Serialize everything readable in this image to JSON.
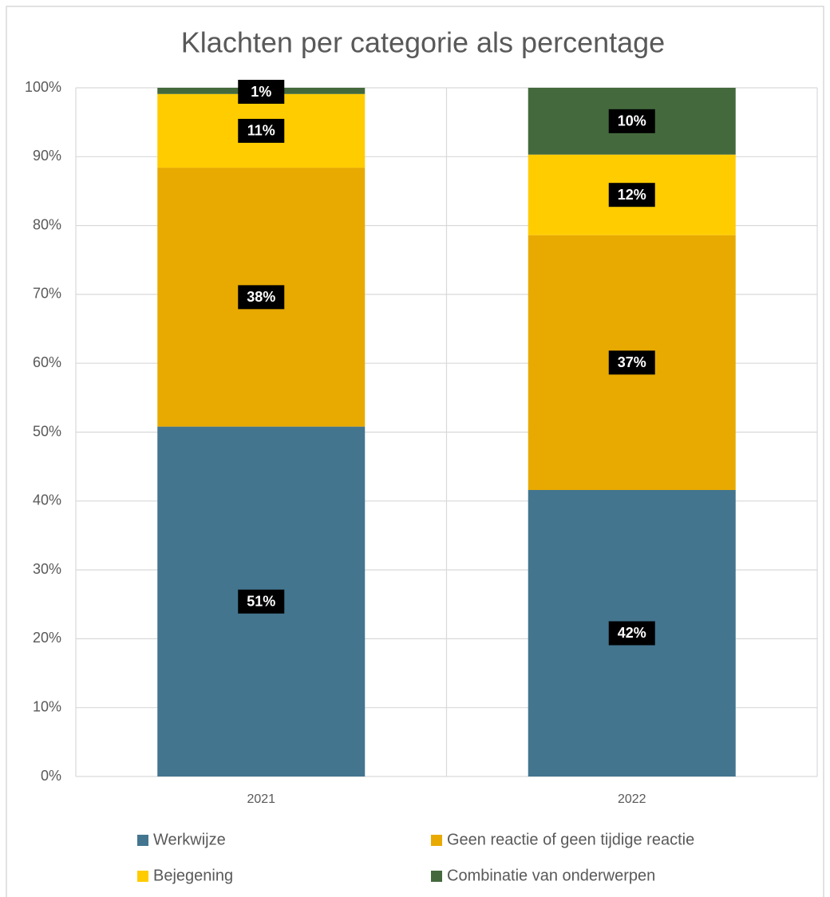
{
  "chart_data": {
    "type": "stacked_bar",
    "title": "Klachten per categorie als percentage",
    "categories": [
      "2021",
      "2022"
    ],
    "series": [
      {
        "name": "Werkwijze",
        "color": "#43758f",
        "values": [
          50.8,
          41.6
        ],
        "value_labels": [
          "51%",
          "42%"
        ]
      },
      {
        "name": "Geen reactie of geen tijdige reactie",
        "color": "#e8aa00",
        "values": [
          37.6,
          37.0
        ],
        "value_labels": [
          "38%",
          "37%"
        ]
      },
      {
        "name": "Bejegening",
        "color": "#ffcc00",
        "values": [
          10.7,
          11.7
        ],
        "value_labels": [
          "11%",
          "12%"
        ]
      },
      {
        "name": "Combinatie van onderwerpen",
        "color": "#44693d",
        "values": [
          0.9,
          9.7
        ],
        "value_labels": [
          "1%",
          "10%"
        ]
      }
    ],
    "ylim": [
      0,
      100
    ],
    "yticks": [
      {
        "value": 0,
        "label": "0%"
      },
      {
        "value": 10,
        "label": "10%"
      },
      {
        "value": 20,
        "label": "20%"
      },
      {
        "value": 30,
        "label": "30%"
      },
      {
        "value": 40,
        "label": "40%"
      },
      {
        "value": 50,
        "label": "50%"
      },
      {
        "value": 60,
        "label": "60%"
      },
      {
        "value": 70,
        "label": "70%"
      },
      {
        "value": 80,
        "label": "80%"
      },
      {
        "value": 90,
        "label": "90%"
      },
      {
        "value": 100,
        "label": "100%"
      }
    ],
    "grid": true,
    "legend": "bottom"
  }
}
